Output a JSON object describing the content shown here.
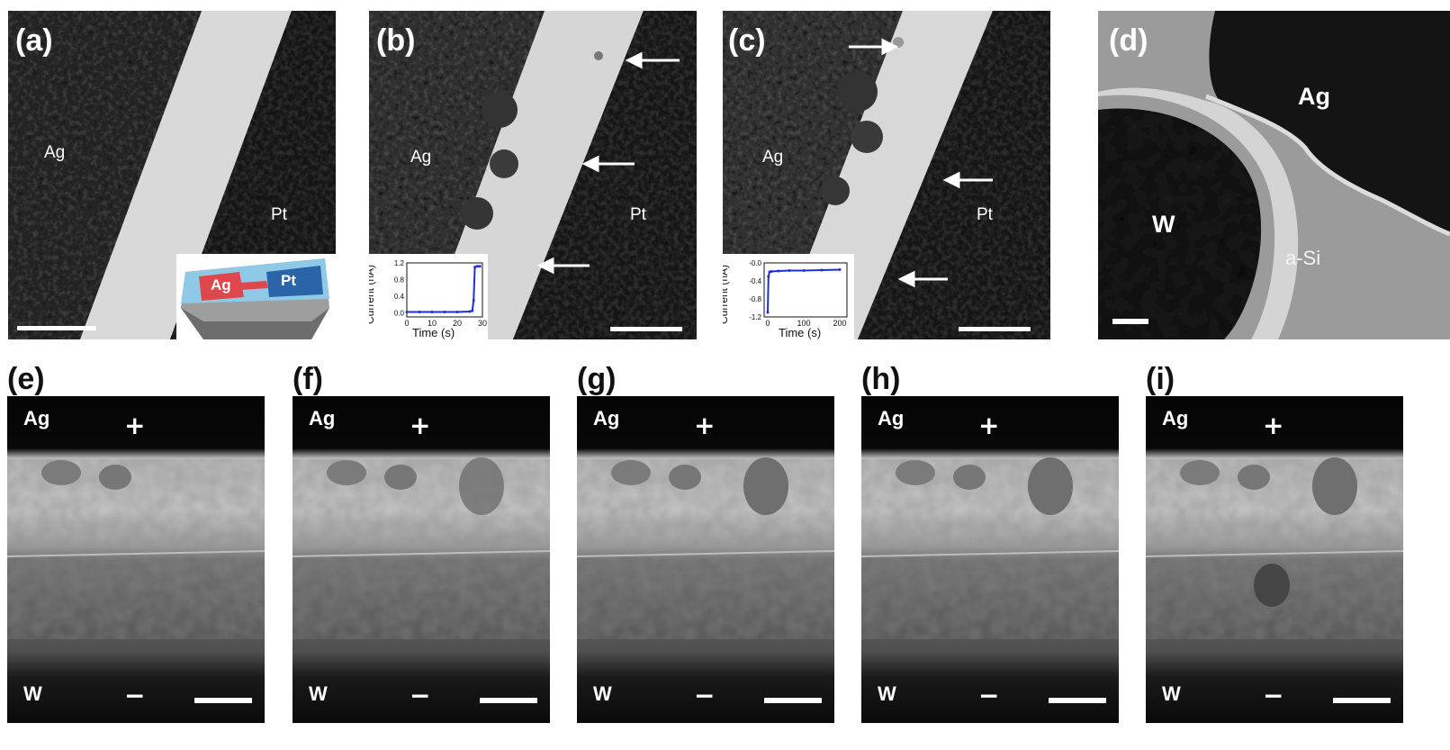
{
  "panels_top": {
    "a": {
      "label": "(a)",
      "left_material": "Ag",
      "right_material": "Pt",
      "inset": {
        "left": "Ag",
        "right": "Pt"
      }
    },
    "b": {
      "label": "(b)",
      "left_material": "Ag",
      "right_material": "Pt",
      "inset": {
        "ylabel": "Current (nA)",
        "xlabel": "Time (s)",
        "yticks": [
          "1.2",
          "0.8",
          "0.4",
          "0.0"
        ],
        "xticks": [
          "0",
          "10",
          "20",
          "30"
        ]
      }
    },
    "c": {
      "label": "(c)",
      "left_material": "Ag",
      "right_material": "Pt",
      "inset": {
        "ylabel": "Current (nA)",
        "xlabel": "Time (s)",
        "yticks": [
          "-0.0",
          "-0.4",
          "-0.8",
          "-1.2"
        ],
        "xticks": [
          "0",
          "100",
          "200"
        ]
      }
    },
    "d": {
      "label": "(d)",
      "ag": "Ag",
      "w": "W",
      "asi": "a-Si"
    }
  },
  "panels_bottom": {
    "top_material": "Ag",
    "bottom_material": "W",
    "plus": "+",
    "minus": "−",
    "labels": [
      "(e)",
      "(f)",
      "(g)",
      "(h)",
      "(i)"
    ]
  },
  "chart_data": [
    {
      "type": "line",
      "title": "",
      "xlabel": "Time (s)",
      "ylabel": "Current (nA)",
      "xlim": [
        0,
        30
      ],
      "ylim": [
        -0.1,
        1.2
      ],
      "series": [
        {
          "x": [
            0,
            5,
            10,
            15,
            20,
            25,
            26,
            26.5,
            27,
            28,
            29
          ],
          "y": [
            0.02,
            0.02,
            0.02,
            0.02,
            0.02,
            0.03,
            0.05,
            0.3,
            1.1,
            1.12,
            1.12
          ]
        }
      ]
    },
    {
      "type": "line",
      "title": "",
      "xlabel": "Time (s)",
      "ylabel": "Current (nA)",
      "xlim": [
        -10,
        220
      ],
      "ylim": [
        -1.2,
        0
      ],
      "series": [
        {
          "x": [
            0,
            2,
            5,
            10,
            30,
            60,
            100,
            150,
            200
          ],
          "y": [
            -1.1,
            -0.3,
            -0.2,
            -0.19,
            -0.18,
            -0.17,
            -0.17,
            -0.16,
            -0.15
          ]
        }
      ]
    }
  ]
}
